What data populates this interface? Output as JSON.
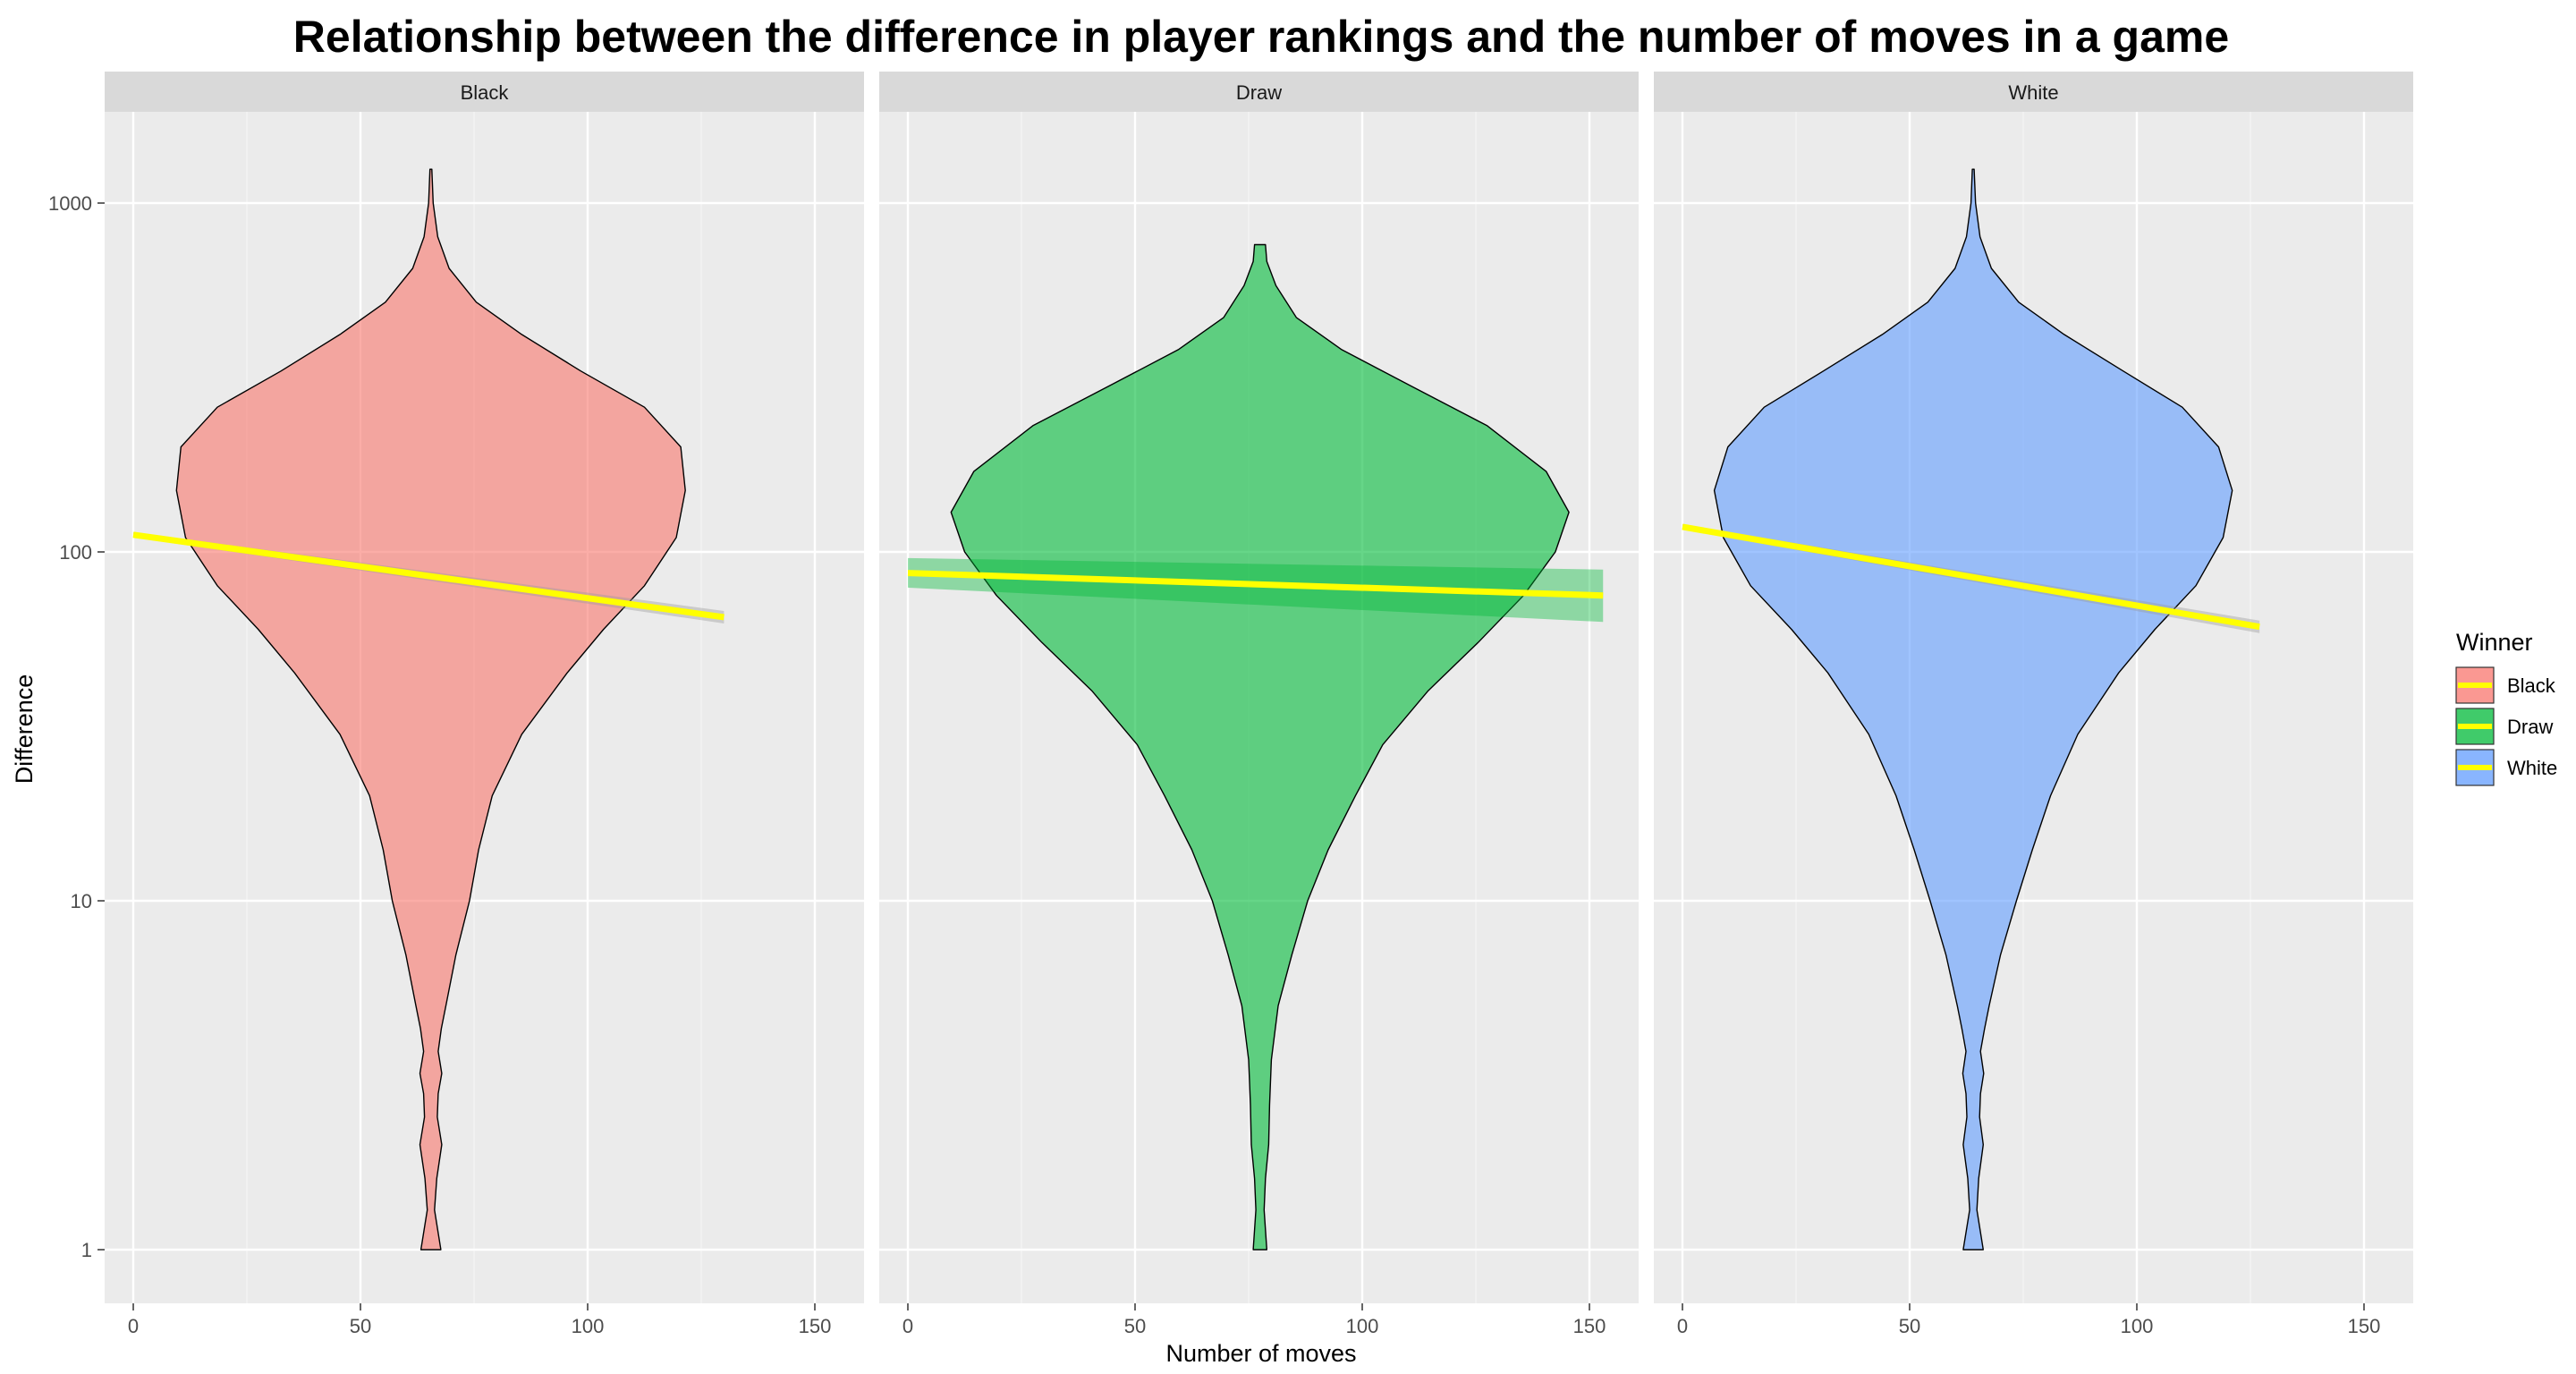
{
  "chart_data": {
    "type": "violin",
    "title": "Relationship between the difference in player rankings and the number of moves in a game",
    "xlabel": "Number of moves",
    "ylabel": "Difference",
    "x_ticks": [
      0,
      50,
      100,
      150
    ],
    "y_ticks": [
      1,
      10,
      100,
      1000
    ],
    "y_scale": "log10",
    "xlim": [
      -5,
      160
    ],
    "ylim": [
      0.8,
      2000
    ],
    "grid": true,
    "legend": {
      "title": "Winner",
      "position": "right",
      "entries": [
        "Black",
        "Draw",
        "White"
      ]
    },
    "trend_line_color": "#ffff00",
    "panels": [
      {
        "name": "Black",
        "fill": "#f8766d",
        "violin_center_x": 65.5,
        "violin_profile": [
          {
            "y": 1,
            "half_width": 2.2
          },
          {
            "y": 1.3,
            "half_width": 0.8
          },
          {
            "y": 1.6,
            "half_width": 1.3
          },
          {
            "y": 2.0,
            "half_width": 2.4
          },
          {
            "y": 2.4,
            "half_width": 1.4
          },
          {
            "y": 2.8,
            "half_width": 1.6
          },
          {
            "y": 3.2,
            "half_width": 2.4
          },
          {
            "y": 3.7,
            "half_width": 1.6
          },
          {
            "y": 4.3,
            "half_width": 2.3
          },
          {
            "y": 5.0,
            "half_width": 3.3
          },
          {
            "y": 7,
            "half_width": 5.5
          },
          {
            "y": 10,
            "half_width": 8.5
          },
          {
            "y": 14,
            "half_width": 10.5
          },
          {
            "y": 20,
            "half_width": 13.5
          },
          {
            "y": 30,
            "half_width": 20
          },
          {
            "y": 45,
            "half_width": 30
          },
          {
            "y": 60,
            "half_width": 38
          },
          {
            "y": 80,
            "half_width": 47
          },
          {
            "y": 110,
            "half_width": 54
          },
          {
            "y": 150,
            "half_width": 56
          },
          {
            "y": 200,
            "half_width": 55
          },
          {
            "y": 260,
            "half_width": 47
          },
          {
            "y": 330,
            "half_width": 33
          },
          {
            "y": 420,
            "half_width": 20
          },
          {
            "y": 520,
            "half_width": 10
          },
          {
            "y": 650,
            "half_width": 4
          },
          {
            "y": 800,
            "half_width": 1.5
          },
          {
            "y": 1000,
            "half_width": 0.5
          },
          {
            "y": 1250,
            "half_width": 0.2
          }
        ],
        "trend": {
          "x": [
            0,
            130
          ],
          "y": [
            112,
            65
          ]
        }
      },
      {
        "name": "Draw",
        "fill": "#00ba38",
        "violin_center_x": 77.5,
        "violin_profile": [
          {
            "y": 1,
            "half_width": 1.5
          },
          {
            "y": 1.3,
            "half_width": 0.9
          },
          {
            "y": 1.6,
            "half_width": 1.2
          },
          {
            "y": 2.0,
            "half_width": 1.9
          },
          {
            "y": 2.6,
            "half_width": 2.1
          },
          {
            "y": 3.5,
            "half_width": 2.5
          },
          {
            "y": 5,
            "half_width": 4
          },
          {
            "y": 7,
            "half_width": 7
          },
          {
            "y": 10,
            "half_width": 10.5
          },
          {
            "y": 14,
            "half_width": 15
          },
          {
            "y": 20,
            "half_width": 21
          },
          {
            "y": 28,
            "half_width": 27
          },
          {
            "y": 40,
            "half_width": 37
          },
          {
            "y": 55,
            "half_width": 48
          },
          {
            "y": 75,
            "half_width": 58
          },
          {
            "y": 100,
            "half_width": 65
          },
          {
            "y": 130,
            "half_width": 68
          },
          {
            "y": 170,
            "half_width": 63
          },
          {
            "y": 230,
            "half_width": 50
          },
          {
            "y": 300,
            "half_width": 33
          },
          {
            "y": 380,
            "half_width": 18
          },
          {
            "y": 470,
            "half_width": 8
          },
          {
            "y": 580,
            "half_width": 3.5
          },
          {
            "y": 680,
            "half_width": 1.5
          },
          {
            "y": 760,
            "half_width": 1.2
          }
        ],
        "trend": {
          "x": [
            0,
            153
          ],
          "y": [
            87,
            75
          ]
        },
        "band": {
          "x": [
            0,
            153
          ],
          "upper": [
            96,
            89
          ],
          "lower": [
            79,
            63
          ]
        }
      },
      {
        "name": "White",
        "fill": "#619cff",
        "violin_center_x": 64,
        "violin_profile": [
          {
            "y": 1,
            "half_width": 2.2
          },
          {
            "y": 1.3,
            "half_width": 0.8
          },
          {
            "y": 1.6,
            "half_width": 1.2
          },
          {
            "y": 2.0,
            "half_width": 2.2
          },
          {
            "y": 2.4,
            "half_width": 1.4
          },
          {
            "y": 2.8,
            "half_width": 1.6
          },
          {
            "y": 3.2,
            "half_width": 2.3
          },
          {
            "y": 3.7,
            "half_width": 1.6
          },
          {
            "y": 4.3,
            "half_width": 2.5
          },
          {
            "y": 5.0,
            "half_width": 3.5
          },
          {
            "y": 7,
            "half_width": 6
          },
          {
            "y": 10,
            "half_width": 9.5
          },
          {
            "y": 14,
            "half_width": 13
          },
          {
            "y": 20,
            "half_width": 17
          },
          {
            "y": 30,
            "half_width": 23
          },
          {
            "y": 45,
            "half_width": 32
          },
          {
            "y": 60,
            "half_width": 40
          },
          {
            "y": 80,
            "half_width": 49
          },
          {
            "y": 110,
            "half_width": 55
          },
          {
            "y": 150,
            "half_width": 57
          },
          {
            "y": 200,
            "half_width": 54
          },
          {
            "y": 260,
            "half_width": 46
          },
          {
            "y": 330,
            "half_width": 33
          },
          {
            "y": 420,
            "half_width": 20
          },
          {
            "y": 520,
            "half_width": 10
          },
          {
            "y": 650,
            "half_width": 4
          },
          {
            "y": 800,
            "half_width": 1.5
          },
          {
            "y": 1000,
            "half_width": 0.5
          },
          {
            "y": 1250,
            "half_width": 0.2
          }
        ],
        "trend": {
          "x": [
            0,
            127
          ],
          "y": [
            118,
            61
          ]
        }
      }
    ]
  }
}
